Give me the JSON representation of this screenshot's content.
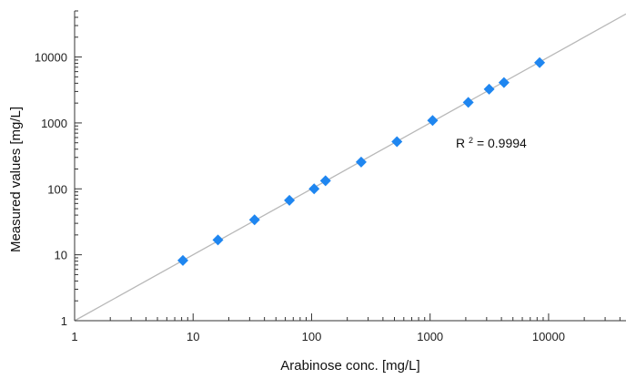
{
  "chart_data": {
    "type": "scatter",
    "xlabel": "Arabinose conc. [mg/L]",
    "ylabel": "Measured values [mg/L]",
    "xscale": "log",
    "yscale": "log",
    "xlim": [
      1,
      45000
    ],
    "ylim": [
      1,
      50000
    ],
    "x_ticks": [
      1,
      10,
      100,
      1000,
      10000
    ],
    "y_ticks": [
      1,
      10,
      100,
      1000,
      10000
    ],
    "x_tick_labels": [
      "1",
      "10",
      "100",
      "1000",
      "10000"
    ],
    "y_tick_labels": [
      "1",
      "10",
      "100",
      "1000",
      "10000"
    ],
    "grid": false,
    "points": [
      {
        "x": 8.2,
        "y": 8.2
      },
      {
        "x": 16.2,
        "y": 16.8
      },
      {
        "x": 33,
        "y": 34
      },
      {
        "x": 65,
        "y": 67
      },
      {
        "x": 105,
        "y": 100
      },
      {
        "x": 131,
        "y": 133
      },
      {
        "x": 262,
        "y": 255
      },
      {
        "x": 525,
        "y": 520
      },
      {
        "x": 1050,
        "y": 1090
      },
      {
        "x": 2100,
        "y": 2050
      },
      {
        "x": 3150,
        "y": 3250
      },
      {
        "x": 4200,
        "y": 4100
      },
      {
        "x": 8400,
        "y": 8200
      }
    ],
    "fit_line": {
      "x": [
        1,
        45000
      ],
      "y": [
        1,
        45000
      ]
    },
    "annotation": {
      "base": "R",
      "superscript": "2",
      "rest": " = 0.9994",
      "x": 1650,
      "y": 420
    },
    "colors": {
      "marker": "#1f86f0",
      "fit_line": "#b8b8b8",
      "axis": "#333333"
    }
  }
}
